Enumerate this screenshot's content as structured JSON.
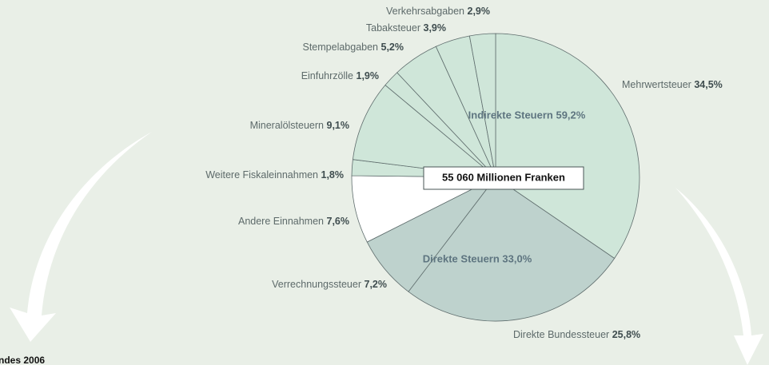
{
  "chart_data": {
    "type": "pie",
    "categories": [
      "Mehrwertsteuer",
      "Direkte Bundessteuer",
      "Verrechnungssteuer",
      "Andere Einnahmen",
      "Weitere Fiskaleinnahmen",
      "Mineralölsteuern",
      "Einfuhrzölle",
      "Stempelabgaben",
      "Tabaksteuer",
      "Verkehrsabgaben"
    ],
    "values": [
      34.5,
      25.8,
      7.2,
      7.6,
      1.8,
      9.1,
      1.9,
      5.2,
      3.9,
      2.9
    ],
    "value_labels": [
      "34,5%",
      "25,8%",
      "7,2%",
      "7,6%",
      "1,8%",
      "9,1%",
      "1,9%",
      "5,2%",
      "3,9%",
      "2,9%"
    ],
    "colors": [
      "#cfe6d9",
      "#bed2cd",
      "#bed2cd",
      "#ffffff",
      "#cfe6d9",
      "#cfe6d9",
      "#cfe6d9",
      "#cfe6d9",
      "#cfe6d9",
      "#cfe6d9"
    ],
    "annotations": [
      "Indirekte Steuern 59,2%",
      "Direkte Steuern 33,0%",
      "55 060 Millionen Franken",
      "ndes 2006"
    ]
  }
}
